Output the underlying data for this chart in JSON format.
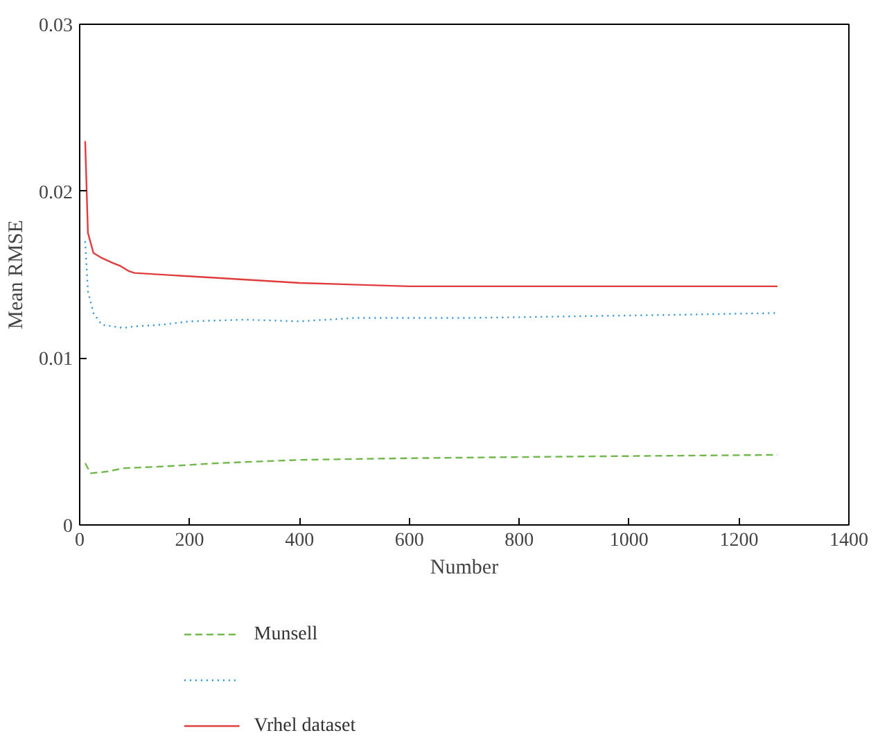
{
  "chart_data": {
    "type": "line",
    "xlabel": "Number",
    "ylabel": "Mean RMSE",
    "xlim": [
      0,
      1400
    ],
    "ylim": [
      0,
      0.03
    ],
    "xticks": [
      0,
      200,
      400,
      600,
      800,
      1000,
      1200,
      1400
    ],
    "yticks": [
      0,
      0.01,
      0.02,
      0.03
    ],
    "grid": false,
    "legend": "bottom",
    "series": [
      {
        "name": "Munsell",
        "color": "#70b84a",
        "line_style": "dashed",
        "x": [
          10,
          20,
          50,
          80,
          150,
          250,
          400,
          600,
          900,
          1270
        ],
        "values": [
          0.0037,
          0.0031,
          0.0032,
          0.0034,
          0.0035,
          0.0037,
          0.0039,
          0.004,
          0.0041,
          0.0042
        ]
      },
      {
        "color": "#2b8fd6",
        "line_style": "dotted",
        "x": [
          10,
          15,
          25,
          40,
          60,
          80,
          100,
          150,
          200,
          300,
          400,
          500,
          700,
          900,
          1100,
          1270
        ],
        "values": [
          0.017,
          0.014,
          0.0127,
          0.012,
          0.0119,
          0.0118,
          0.0119,
          0.012,
          0.0122,
          0.0123,
          0.0122,
          0.0124,
          0.0124,
          0.0125,
          0.0126,
          0.0127
        ]
      },
      {
        "name": "Vrhel dataset",
        "color": "#e03c3c",
        "line_style": "solid",
        "x": [
          10,
          15,
          25,
          40,
          60,
          75,
          90,
          100,
          250,
          400,
          600,
          1270
        ],
        "values": [
          0.023,
          0.0175,
          0.0163,
          0.016,
          0.0157,
          0.0155,
          0.0152,
          0.0151,
          0.0148,
          0.0145,
          0.0143,
          0.0143
        ]
      }
    ]
  }
}
